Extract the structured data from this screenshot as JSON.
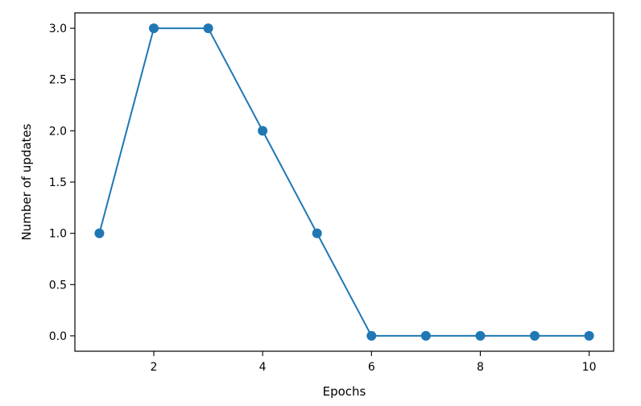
{
  "chart_data": {
    "type": "line",
    "title": "",
    "xlabel": "Epochs",
    "ylabel": "Number of updates",
    "x": [
      1,
      2,
      3,
      4,
      5,
      6,
      7,
      8,
      9,
      10
    ],
    "series": [
      {
        "values": [
          1,
          3,
          3,
          2,
          1,
          0,
          0,
          0,
          0,
          0
        ],
        "color": "#1f77b4",
        "marker": "circle"
      }
    ],
    "xlim": [
      0.55,
      10.45
    ],
    "ylim": [
      -0.15,
      3.15
    ],
    "xticks": [
      2,
      4,
      6,
      8,
      10
    ],
    "xtick_labels": [
      "2",
      "4",
      "6",
      "8",
      "10"
    ],
    "yticks": [
      0,
      0.5,
      1,
      1.5,
      2,
      2.5,
      3
    ],
    "ytick_labels": [
      "0.0",
      "0.5",
      "1.0",
      "1.5",
      "2.0",
      "2.5",
      "3.0"
    ],
    "grid": false,
    "legend": "none"
  }
}
